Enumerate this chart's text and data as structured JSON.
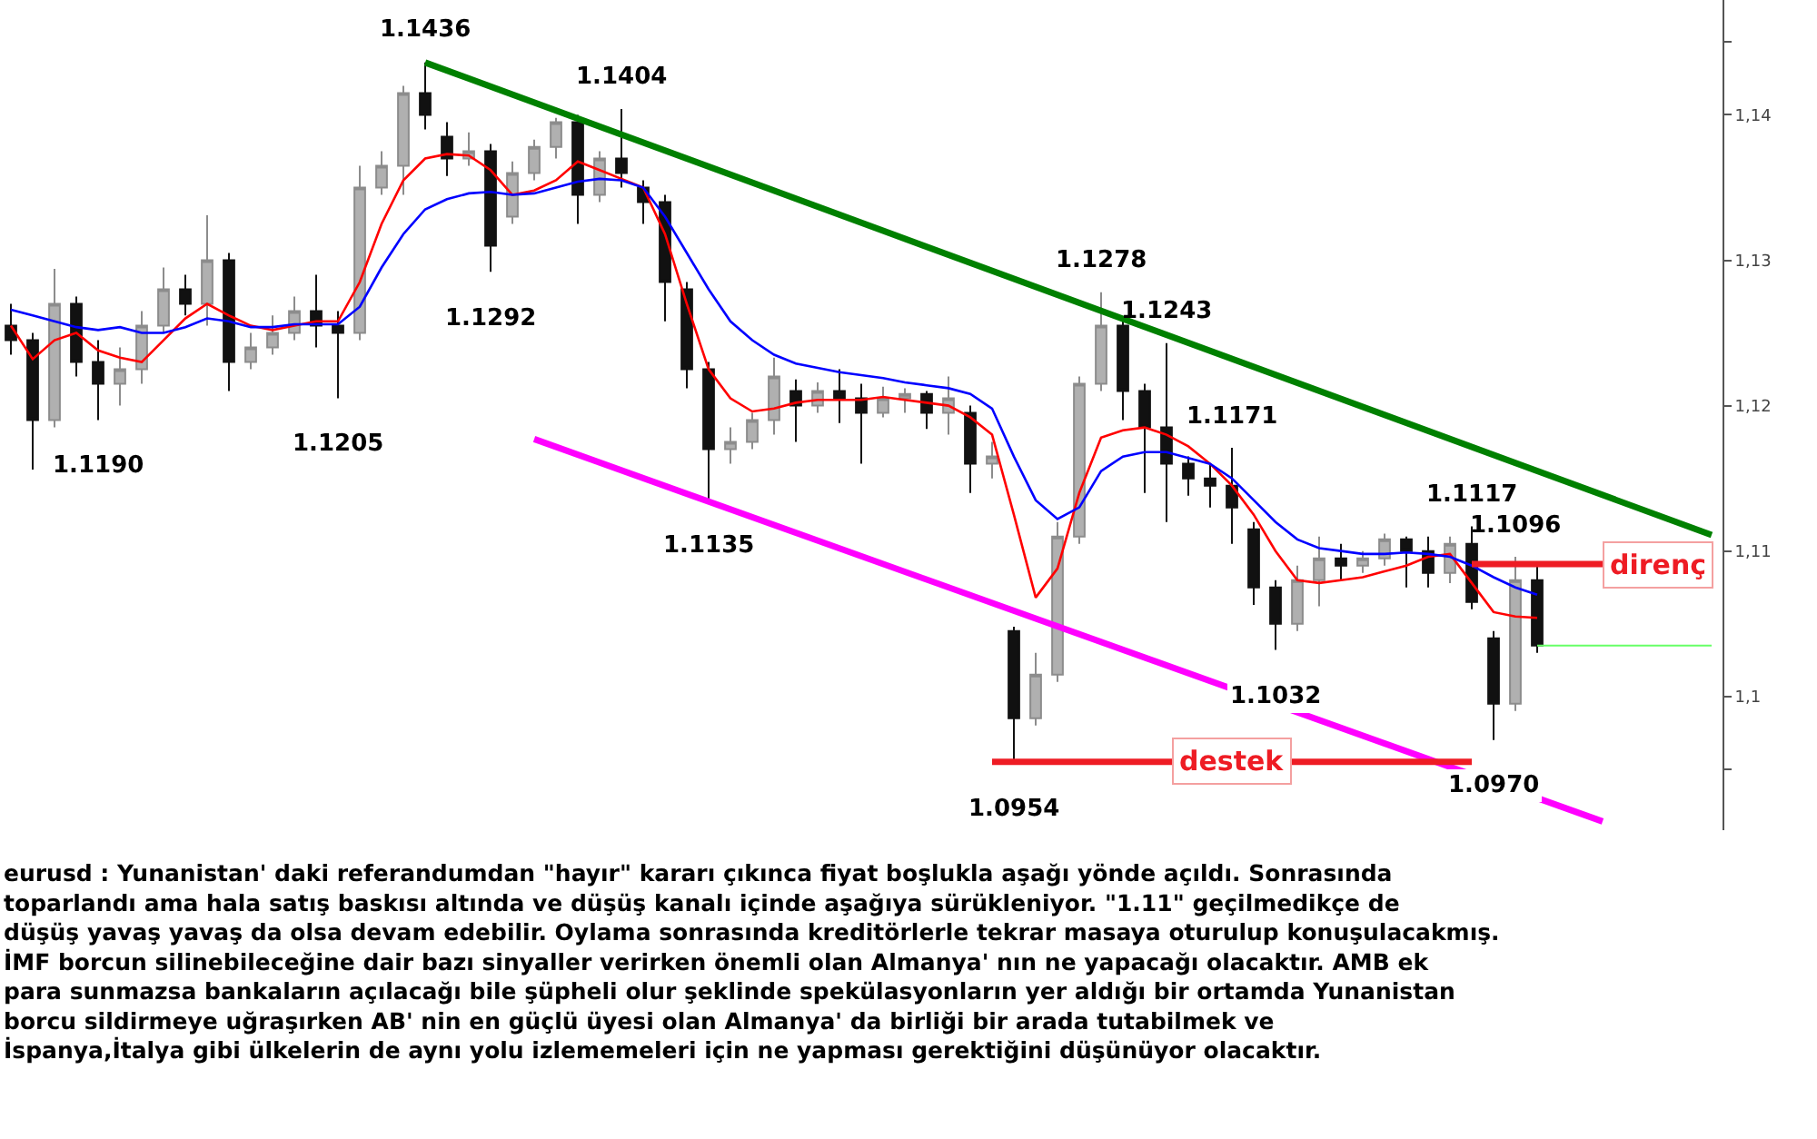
{
  "chart_data": {
    "type": "candlestick",
    "categories": [
      null,
      null,
      null,
      null,
      null,
      null,
      null,
      null,
      null,
      null,
      null,
      null,
      null,
      null,
      null,
      null,
      null,
      null,
      null,
      null,
      null,
      null,
      null,
      null,
      null,
      null,
      null,
      null,
      null,
      null,
      null,
      null,
      null,
      null,
      null,
      null,
      null,
      null,
      null,
      null,
      null,
      null,
      null,
      null,
      null,
      null,
      null,
      null,
      null,
      null,
      null,
      null,
      null,
      null,
      null,
      null,
      null,
      null,
      null,
      null,
      null,
      null,
      null,
      null,
      null,
      null,
      null,
      null,
      null,
      null,
      null,
      null,
      null,
      null,
      null,
      null,
      null,
      null,
      null
    ],
    "ohlc": [
      [
        1.1255,
        1.127,
        1.1235,
        1.1245
      ],
      [
        1.1245,
        1.125,
        1.1156,
        1.119
      ],
      [
        1.119,
        1.1294,
        1.1185,
        1.127
      ],
      [
        1.127,
        1.1275,
        1.122,
        1.123
      ],
      [
        1.123,
        1.1245,
        1.119,
        1.1215
      ],
      [
        1.1215,
        1.124,
        1.12,
        1.1225
      ],
      [
        1.1225,
        1.1265,
        1.1215,
        1.1255
      ],
      [
        1.1255,
        1.1295,
        1.125,
        1.128
      ],
      [
        1.128,
        1.129,
        1.1262,
        1.127
      ],
      [
        1.127,
        1.1331,
        1.1255,
        1.13
      ],
      [
        1.13,
        1.1305,
        1.121,
        1.123
      ],
      [
        1.123,
        1.125,
        1.1225,
        1.124
      ],
      [
        1.124,
        1.1262,
        1.1235,
        1.125
      ],
      [
        1.125,
        1.1275,
        1.1245,
        1.1265
      ],
      [
        1.1265,
        1.129,
        1.124,
        1.1255
      ],
      [
        1.1255,
        1.1265,
        1.1205,
        1.125
      ],
      [
        1.125,
        1.1365,
        1.1245,
        1.135
      ],
      [
        1.135,
        1.1375,
        1.1345,
        1.1365
      ],
      [
        1.1365,
        1.142,
        1.1345,
        1.1415
      ],
      [
        1.1415,
        1.1436,
        1.139,
        1.14
      ],
      [
        1.1385,
        1.1395,
        1.1358,
        1.137
      ],
      [
        1.137,
        1.1388,
        1.1365,
        1.1375
      ],
      [
        1.1375,
        1.138,
        1.1292,
        1.131
      ],
      [
        1.133,
        1.1368,
        1.1325,
        1.136
      ],
      [
        1.136,
        1.1383,
        1.1355,
        1.1378
      ],
      [
        1.1378,
        1.1398,
        1.137,
        1.1395
      ],
      [
        1.1395,
        1.14,
        1.1325,
        1.1345
      ],
      [
        1.1345,
        1.1375,
        1.134,
        1.137
      ],
      [
        1.137,
        1.1404,
        1.135,
        1.136
      ],
      [
        1.135,
        1.1355,
        1.1325,
        1.134
      ],
      [
        1.134,
        1.1345,
        1.1258,
        1.1285
      ],
      [
        1.128,
        1.1285,
        1.1212,
        1.1225
      ],
      [
        1.1225,
        1.123,
        1.1135,
        1.117
      ],
      [
        1.117,
        1.1185,
        1.116,
        1.1175
      ],
      [
        1.1175,
        1.1195,
        1.117,
        1.119
      ],
      [
        1.119,
        1.1233,
        1.118,
        1.122
      ],
      [
        1.121,
        1.1218,
        1.1175,
        1.12
      ],
      [
        1.12,
        1.1216,
        1.1195,
        1.121
      ],
      [
        1.121,
        1.1225,
        1.1188,
        1.1205
      ],
      [
        1.1205,
        1.1215,
        1.116,
        1.1195
      ],
      [
        1.1195,
        1.1213,
        1.1192,
        1.1205
      ],
      [
        1.1205,
        1.1212,
        1.1195,
        1.1208
      ],
      [
        1.1208,
        1.121,
        1.1184,
        1.1195
      ],
      [
        1.1195,
        1.122,
        1.118,
        1.1205
      ],
      [
        1.1195,
        1.12,
        1.114,
        1.116
      ],
      [
        1.116,
        1.1175,
        1.115,
        1.1165
      ],
      [
        1.1045,
        1.1048,
        1.0954,
        1.0985
      ],
      [
        1.0985,
        1.103,
        1.098,
        1.1015
      ],
      [
        1.1015,
        1.112,
        1.101,
        1.111
      ],
      [
        1.111,
        1.122,
        1.1105,
        1.1215
      ],
      [
        1.1215,
        1.1278,
        1.121,
        1.1255
      ],
      [
        1.1255,
        1.126,
        1.119,
        1.121
      ],
      [
        1.121,
        1.1215,
        1.114,
        1.1185
      ],
      [
        1.1185,
        1.1243,
        1.112,
        1.116
      ],
      [
        1.116,
        1.1165,
        1.1138,
        1.115
      ],
      [
        1.115,
        1.116,
        1.113,
        1.1145
      ],
      [
        1.1145,
        1.1171,
        1.1105,
        1.113
      ],
      [
        1.1115,
        1.112,
        1.1063,
        1.1075
      ],
      [
        1.1075,
        1.108,
        1.1032,
        1.105
      ],
      [
        1.105,
        1.109,
        1.1045,
        1.108
      ],
      [
        1.108,
        1.111,
        1.1062,
        1.1095
      ],
      [
        1.1095,
        1.1105,
        1.108,
        1.109
      ],
      [
        1.109,
        1.11,
        1.1085,
        1.1095
      ],
      [
        1.1095,
        1.1112,
        1.109,
        1.1108
      ],
      [
        1.1108,
        1.111,
        1.1075,
        1.11
      ],
      [
        1.11,
        1.111,
        1.1075,
        1.1085
      ],
      [
        1.1085,
        1.111,
        1.1078,
        1.1105
      ],
      [
        1.1105,
        1.1117,
        1.106,
        1.1065
      ],
      [
        1.104,
        1.1045,
        1.097,
        1.0995
      ],
      [
        1.0995,
        1.1096,
        1.099,
        1.108
      ],
      [
        1.108,
        1.109,
        1.103,
        1.1035
      ],
      null,
      null,
      null,
      null,
      null,
      null,
      null,
      null
    ],
    "series": [
      {
        "type": "line",
        "color": "#ff0000",
        "values": [
          1.1255,
          1.1232,
          1.1245,
          1.125,
          1.1238,
          1.1233,
          1.123,
          1.1245,
          1.126,
          1.127,
          1.1262,
          1.1255,
          1.1252,
          1.1255,
          1.1258,
          1.1258,
          1.1285,
          1.1325,
          1.1355,
          1.137,
          1.1373,
          1.1372,
          1.1362,
          1.1345,
          1.1348,
          1.1355,
          1.1368,
          1.1362,
          1.1356,
          1.135,
          1.1318,
          1.127,
          1.1225,
          1.1205,
          1.1196,
          1.1198,
          1.1202,
          1.1204,
          1.1204,
          1.1204,
          1.1206,
          1.1204,
          1.1202,
          1.12,
          1.1192,
          1.118,
          1.1125,
          1.1068,
          1.1088,
          1.114,
          1.1178,
          1.1183,
          1.1185,
          1.118,
          1.1172,
          1.116,
          1.1145,
          1.1125,
          1.11,
          1.108,
          1.1078,
          1.108,
          1.1082,
          1.1086,
          1.109,
          1.1096,
          1.1098,
          1.1078,
          1.1058,
          1.1055,
          1.1054,
          null,
          null,
          null,
          null,
          null,
          null,
          null,
          null
        ]
      },
      {
        "type": "line",
        "color": "#0000ff",
        "values": [
          1.1266,
          1.1262,
          1.1258,
          1.1254,
          1.1252,
          1.1254,
          1.125,
          1.125,
          1.1254,
          1.126,
          1.1258,
          1.1254,
          1.1254,
          1.1256,
          1.1256,
          1.1256,
          1.1268,
          1.1295,
          1.1318,
          1.1335,
          1.1342,
          1.1346,
          1.1347,
          1.1345,
          1.1346,
          1.135,
          1.1354,
          1.1356,
          1.1355,
          1.135,
          1.133,
          1.1305,
          1.128,
          1.1258,
          1.1245,
          1.1235,
          1.1229,
          1.1226,
          1.1223,
          1.1221,
          1.1219,
          1.1216,
          1.1214,
          1.1212,
          1.1208,
          1.1198,
          1.1165,
          1.1135,
          1.1122,
          1.113,
          1.1155,
          1.1165,
          1.1168,
          1.1168,
          1.1164,
          1.116,
          1.115,
          1.1135,
          1.112,
          1.1108,
          1.1102,
          1.11,
          1.1098,
          1.1098,
          1.1099,
          1.1098,
          1.1096,
          1.109,
          1.1082,
          1.1075,
          1.107,
          null,
          null,
          null,
          null,
          null,
          null,
          null,
          null
        ]
      },
      {
        "type": "line",
        "color": "#008000",
        "values": [
          null,
          null,
          null,
          null,
          null,
          null,
          null,
          null,
          null,
          null,
          null,
          null,
          null,
          null,
          null,
          null,
          null,
          null,
          null,
          1.1436,
          null,
          null,
          null,
          null,
          null,
          null,
          null,
          null,
          null,
          null,
          null,
          null,
          null,
          null,
          null,
          null,
          null,
          null,
          null,
          null,
          null,
          null,
          null,
          null,
          null,
          null,
          null,
          null,
          null,
          null,
          null,
          null,
          null,
          null,
          null,
          null,
          null,
          null,
          null,
          null,
          null,
          null,
          null,
          null,
          null,
          null,
          null,
          null,
          null,
          null,
          null,
          null,
          null,
          null,
          null,
          null,
          null,
          null,
          1.1111
        ]
      },
      {
        "type": "line",
        "color": "#ff00ff",
        "values": [
          null,
          null,
          null,
          null,
          null,
          null,
          null,
          null,
          null,
          null,
          null,
          null,
          null,
          null,
          null,
          null,
          null,
          null,
          null,
          null,
          null,
          null,
          null,
          null,
          1.1177,
          null,
          null,
          null,
          null,
          null,
          null,
          null,
          null,
          null,
          null,
          null,
          null,
          null,
          null,
          null,
          null,
          null,
          null,
          null,
          null,
          null,
          null,
          null,
          null,
          null,
          null,
          null,
          null,
          null,
          null,
          null,
          null,
          null,
          null,
          null,
          null,
          null,
          null,
          null,
          null,
          null,
          null,
          null,
          null,
          null,
          null,
          null,
          null,
          1.0914,
          null,
          null,
          null,
          null,
          null
        ]
      },
      {
        "type": "line",
        "name": "destek",
        "color": "#ee1c24",
        "values": [
          null,
          null,
          null,
          null,
          null,
          null,
          null,
          null,
          null,
          null,
          null,
          null,
          null,
          null,
          null,
          null,
          null,
          null,
          null,
          null,
          null,
          null,
          null,
          null,
          null,
          null,
          null,
          null,
          null,
          null,
          null,
          null,
          null,
          null,
          null,
          null,
          null,
          null,
          null,
          null,
          null,
          null,
          null,
          null,
          null,
          1.0955,
          null,
          null,
          null,
          null,
          null,
          null,
          null,
          null,
          null,
          null,
          null,
          null,
          null,
          null,
          null,
          null,
          null,
          null,
          null,
          null,
          null,
          1.0955,
          null,
          null,
          null,
          null,
          null,
          null,
          null,
          null,
          null,
          null,
          null
        ]
      },
      {
        "type": "line",
        "name": "direnç",
        "color": "#ee1c24",
        "values": [
          null,
          null,
          null,
          null,
          null,
          null,
          null,
          null,
          null,
          null,
          null,
          null,
          null,
          null,
          null,
          null,
          null,
          null,
          null,
          null,
          null,
          null,
          null,
          null,
          null,
          null,
          null,
          null,
          null,
          null,
          null,
          null,
          null,
          null,
          null,
          null,
          null,
          null,
          null,
          null,
          null,
          null,
          null,
          null,
          null,
          null,
          null,
          null,
          null,
          null,
          null,
          null,
          null,
          null,
          null,
          null,
          null,
          null,
          null,
          null,
          null,
          null,
          null,
          null,
          null,
          null,
          null,
          1.1091,
          null,
          null,
          null,
          null,
          null,
          1.1091,
          null,
          null,
          null,
          null,
          null
        ]
      },
      {
        "type": "line",
        "color": "#66ff66",
        "values": [
          null,
          null,
          null,
          null,
          null,
          null,
          null,
          null,
          null,
          null,
          null,
          null,
          null,
          null,
          null,
          null,
          null,
          null,
          null,
          null,
          null,
          null,
          null,
          null,
          null,
          null,
          null,
          null,
          null,
          null,
          null,
          null,
          null,
          null,
          null,
          null,
          null,
          null,
          null,
          null,
          null,
          null,
          null,
          null,
          null,
          null,
          null,
          null,
          null,
          null,
          null,
          null,
          null,
          null,
          null,
          null,
          null,
          null,
          null,
          null,
          null,
          null,
          null,
          null,
          null,
          null,
          null,
          null,
          null,
          null,
          1.1035,
          null,
          null,
          null,
          null,
          null,
          null,
          null,
          1.1035
        ]
      }
    ],
    "ylim": [
      1.0908,
      1.1479
    ],
    "yticks": [
      {
        "value": 1.095,
        "label": null
      },
      {
        "value": 1.1,
        "label": "1,1"
      },
      {
        "value": 1.11,
        "label": "1,11"
      },
      {
        "value": 1.12,
        "label": "1,12"
      },
      {
        "value": 1.13,
        "label": "1,13"
      },
      {
        "value": 1.14,
        "label": "1,14"
      },
      {
        "value": 1.145,
        "label": null
      }
    ],
    "tick_labels": "y",
    "legend": false,
    "annotations": [
      {
        "text": "1.1436",
        "y": 1.1436
      },
      {
        "text": "1.1404",
        "y": 1.1404
      },
      {
        "text": "1.1190",
        "y": 1.119
      },
      {
        "text": "1.1205",
        "y": 1.1205
      },
      {
        "text": "1.1292",
        "y": 1.1292
      },
      {
        "text": "1.1135",
        "y": 1.1135
      },
      {
        "text": "1.1278",
        "y": 1.1278
      },
      {
        "text": "1.1243",
        "y": 1.1243
      },
      {
        "text": "1.1171",
        "y": 1.1171
      },
      {
        "text": "1.0954",
        "y": 1.0954
      },
      {
        "text": "1.1032",
        "y": 1.1032
      },
      {
        "text": "1.1117",
        "y": 1.1117
      },
      {
        "text": "1.1096",
        "y": 1.1096
      },
      {
        "text": "1.0970",
        "y": 1.097
      },
      "eurusd : Yunanistan' daki referandumdan \"hayır\" kararı çıkınca fiyat boşlukla aşağı yönde açıldı. Sonrasında toparlandı ama hala satış baskısı altında ve düşüş kanalı içinde aşağıya sürükleniyor. \"1.11\" geçilmedikçe de düşüş yavaş yavaş da olsa devam edebilir. Oylama sonrasında kreditörlerle tekrar masaya oturulup konuşulacakmış. İMF borcun silinebileceğine dair bazı sinyaller verirken önemli olan Almanya' nın ne yapacağı olacaktır. AMB ek para sunmazsa bankaların açılacağı bile şüpheli olur şeklinde spekülasyonların yer aldığı bir ortamda Yunanistan borcu sildirmeye uğraşırken AB' nin en güçlü üyesi olan Almanya' da birliği bir arada tutabilmek ve İspanya,İtalya gibi ülkelerin de aynı yolu izlememeleri için ne yapması gerektiğini düşünüyor olacaktır."
    ]
  }
}
